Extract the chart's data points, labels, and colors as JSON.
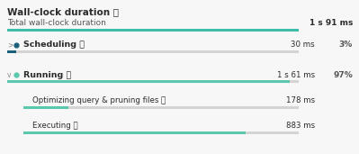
{
  "title": "Wall-clock duration ⓘ",
  "bg_color": "#f7f7f7",
  "total_label": "Total wall-clock duration",
  "total_value": "1 s 91 ms",
  "total_bar_filled": 1.0,
  "total_bar_color": "#3dbda7",
  "total_bar_bg": "#d4d4d4",
  "rows": [
    {
      "indent": 0,
      "has_arrow": true,
      "arrow_char": ">",
      "dot_color": "#1b607a",
      "label": "Scheduling ⓘ",
      "bold": true,
      "value": "30 ms",
      "pct": "3%",
      "bar_filled": 0.03,
      "bar_color": "#1b607a",
      "bar_bg": "#d4d4d4"
    },
    {
      "indent": 0,
      "has_arrow": true,
      "arrow_char": "v",
      "dot_color": "#5bc8ad",
      "label": "Running ⓘ",
      "bold": true,
      "value": "1 s 61 ms",
      "pct": "97%",
      "bar_filled": 0.97,
      "bar_color": "#5bc8ad",
      "bar_bg": "#d4d4d4"
    },
    {
      "indent": 1,
      "has_arrow": false,
      "arrow_char": "",
      "dot_color": null,
      "label": "Optimizing query & pruning files ⓘ",
      "bold": false,
      "value": "178 ms",
      "pct": "",
      "bar_filled": 0.163,
      "bar_color": "#5bc8ad",
      "bar_bg": "#d4d4d4"
    },
    {
      "indent": 1,
      "has_arrow": false,
      "arrow_char": "",
      "dot_color": null,
      "label": "Executing ⓘ",
      "bold": false,
      "value": "883 ms",
      "pct": "",
      "bar_filled": 0.808,
      "bar_color": "#5bc8ad",
      "bar_bg": "#d4d4d4"
    }
  ]
}
